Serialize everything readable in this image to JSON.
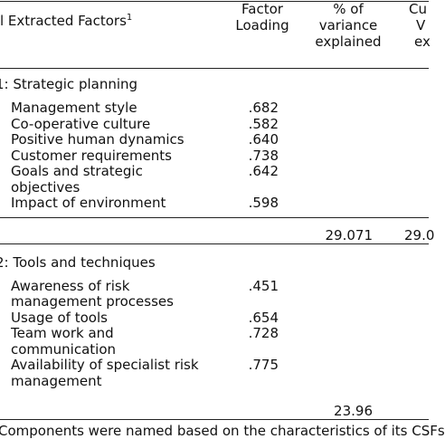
{
  "header": {
    "factors": "l Extracted Factors",
    "factors_note": "1",
    "loading": [
      "Factor",
      "Loading"
    ],
    "variance": [
      "% of",
      "variance",
      "explained"
    ],
    "cumulative": [
      "Cu",
      "V",
      "ex"
    ]
  },
  "sections": [
    {
      "title": "1: Strategic  planning",
      "rows": [
        {
          "factor": [
            "Management style"
          ],
          "loading": ".682"
        },
        {
          "factor": [
            "Co-operative culture"
          ],
          "loading": ".582"
        },
        {
          "factor": [
            "Positive human dynamics"
          ],
          "loading": ".640"
        },
        {
          "factor": [
            "Customer requirements"
          ],
          "loading": ".738"
        },
        {
          "factor": [
            "Goals and strategic",
            "objectives"
          ],
          "loading": ".642"
        },
        {
          "factor": [
            "Impact of environment"
          ],
          "loading": ".598"
        }
      ],
      "variance": "29.071",
      "cumulative": "29.0"
    },
    {
      "title": "2: Tools and techniques",
      "rows": [
        {
          "factor": [
            "Awareness of risk",
            "management processes"
          ],
          "loading": ".451"
        },
        {
          "factor": [
            "Usage of tools"
          ],
          "loading": ".654"
        },
        {
          "factor": [
            "Team work and",
            "communication"
          ],
          "loading": ".728"
        },
        {
          "factor": [
            "Availability of specialist risk",
            "management"
          ],
          "loading": ".775"
        }
      ],
      "variance": "23.96"
    }
  ],
  "footnote": "Components were named based on the characteristics of its CSFs"
}
